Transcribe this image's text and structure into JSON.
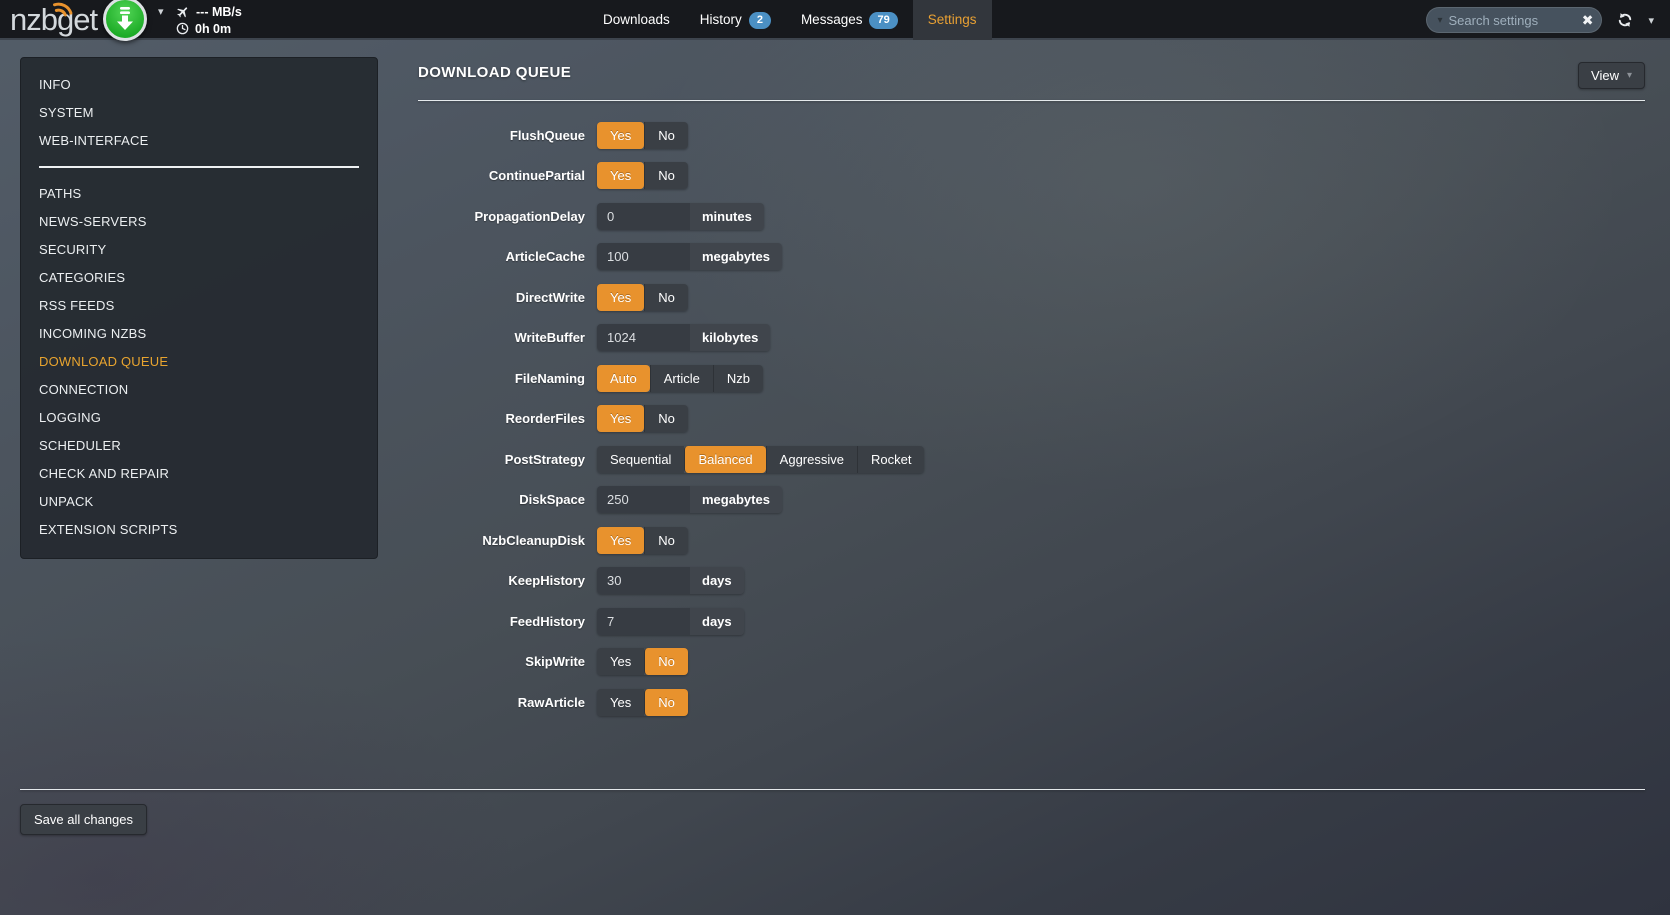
{
  "header": {
    "logo": "nzbget",
    "speed": "--- MB/s",
    "time_left": "0h 0m",
    "nav": [
      {
        "label": "Downloads",
        "badge": null,
        "active": false
      },
      {
        "label": "History",
        "badge": "2",
        "active": false
      },
      {
        "label": "Messages",
        "badge": "79",
        "active": false
      },
      {
        "label": "Settings",
        "badge": null,
        "active": true
      }
    ],
    "search": {
      "placeholder": "Search settings"
    }
  },
  "sidebar": {
    "items": [
      {
        "label": "INFO"
      },
      {
        "label": "SYSTEM"
      },
      {
        "label": "WEB-INTERFACE"
      },
      {
        "divider": true
      },
      {
        "label": "PATHS"
      },
      {
        "label": "NEWS-SERVERS"
      },
      {
        "label": "SECURITY"
      },
      {
        "label": "CATEGORIES"
      },
      {
        "label": "RSS FEEDS"
      },
      {
        "label": "INCOMING NZBS"
      },
      {
        "label": "DOWNLOAD QUEUE",
        "active": true
      },
      {
        "label": "CONNECTION"
      },
      {
        "label": "LOGGING"
      },
      {
        "label": "SCHEDULER"
      },
      {
        "label": "CHECK AND REPAIR"
      },
      {
        "label": "UNPACK"
      },
      {
        "label": "EXTENSION SCRIPTS"
      }
    ]
  },
  "main": {
    "title": "DOWNLOAD QUEUE",
    "view_button": "View",
    "save_button": "Save all changes",
    "rows": [
      {
        "label": "FlushQueue",
        "type": "toggle",
        "options": [
          "Yes",
          "No"
        ],
        "selected": "Yes"
      },
      {
        "label": "ContinuePartial",
        "type": "toggle",
        "options": [
          "Yes",
          "No"
        ],
        "selected": "Yes"
      },
      {
        "label": "PropagationDelay",
        "type": "input",
        "value": "0",
        "unit": "minutes"
      },
      {
        "label": "ArticleCache",
        "type": "input",
        "value": "100",
        "unit": "megabytes"
      },
      {
        "label": "DirectWrite",
        "type": "toggle",
        "options": [
          "Yes",
          "No"
        ],
        "selected": "Yes"
      },
      {
        "label": "WriteBuffer",
        "type": "input",
        "value": "1024",
        "unit": "kilobytes"
      },
      {
        "label": "FileNaming",
        "type": "toggle",
        "options": [
          "Auto",
          "Article",
          "Nzb"
        ],
        "selected": "Auto"
      },
      {
        "label": "ReorderFiles",
        "type": "toggle",
        "options": [
          "Yes",
          "No"
        ],
        "selected": "Yes"
      },
      {
        "label": "PostStrategy",
        "type": "toggle",
        "options": [
          "Sequential",
          "Balanced",
          "Aggressive",
          "Rocket"
        ],
        "selected": "Balanced"
      },
      {
        "label": "DiskSpace",
        "type": "input",
        "value": "250",
        "unit": "megabytes"
      },
      {
        "label": "NzbCleanupDisk",
        "type": "toggle",
        "options": [
          "Yes",
          "No"
        ],
        "selected": "Yes"
      },
      {
        "label": "KeepHistory",
        "type": "input",
        "value": "30",
        "unit": "days"
      },
      {
        "label": "FeedHistory",
        "type": "input",
        "value": "7",
        "unit": "days"
      },
      {
        "label": "SkipWrite",
        "type": "toggle",
        "options": [
          "Yes",
          "No"
        ],
        "selected": "No"
      },
      {
        "label": "RawArticle",
        "type": "toggle",
        "options": [
          "Yes",
          "No"
        ],
        "selected": "No"
      }
    ]
  },
  "colors": {
    "accent": "#e8922d",
    "badge_blue": "#4b90c4",
    "play_green": "#1cab26"
  }
}
